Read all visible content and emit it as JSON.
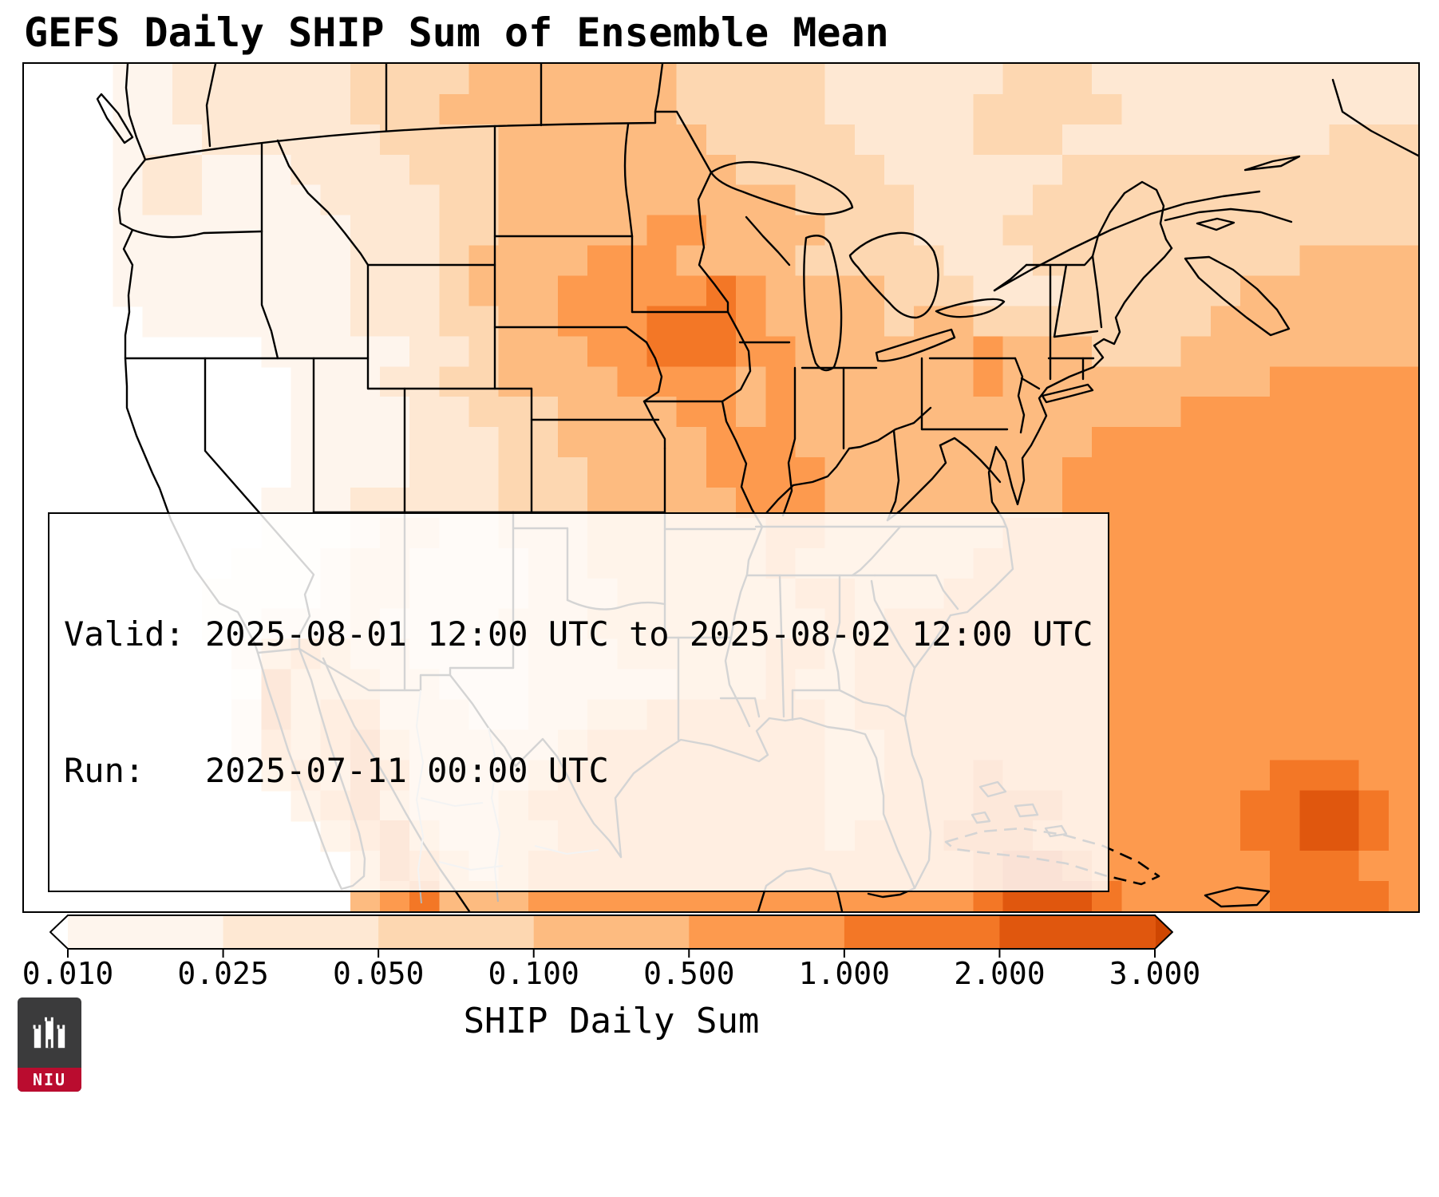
{
  "title": "GEFS Daily SHIP Sum of Ensemble Mean",
  "info_box": {
    "valid_line": "Valid: 2025-08-01 12:00 UTC to 2025-08-02 12:00 UTC",
    "run_line": "Run:   2025-07-11 00:00 UTC"
  },
  "colorbar": {
    "label": "SHIP Daily Sum",
    "ticks": [
      "0.010",
      "0.025",
      "0.050",
      "0.100",
      "0.500",
      "1.000",
      "2.000",
      "3.000"
    ],
    "under_color": "#ffffff",
    "segment_colors": [
      "#fef5ed",
      "#fee8d3",
      "#fdd7b1",
      "#fdbb80",
      "#fd9a4e",
      "#f37726",
      "#e0570e"
    ],
    "over_color": "#ce4602"
  },
  "logo": {
    "text": "NIU",
    "bg": "#3b3b3c",
    "accent": "#ba0c2f"
  },
  "chart_data": {
    "type": "heatmap",
    "title": "GEFS Daily SHIP Sum of Ensemble Mean",
    "colorbar_label": "SHIP Daily Sum",
    "colorbar_ticks": [
      0.01,
      0.025,
      0.05,
      0.1,
      0.5,
      1.0,
      2.0,
      3.0
    ],
    "valid": "2025-08-01 12:00 UTC to 2025-08-02 12:00 UTC",
    "run": "2025-07-11 00:00 UTC",
    "region": "CONUS, southern Canada, northern Mexico, Gulf of Mexico and western Atlantic (approx lon -130 to -53, lat 24 to 52)",
    "legend_position": "bottom",
    "grid": "off",
    "palette": {
      "0": "#ffffff",
      "1": "#fef5ed",
      "2": "#fee8d3",
      "3": "#fdd7b1",
      "4": "#fdbb80",
      "5": "#fd9a4e",
      "6": "#f37726",
      "7": "#e0570e",
      "8": "#ce4602"
    },
    "level_bins": {
      "0": "< 0.010",
      "1": "0.010-0.025",
      "2": "0.025-0.050",
      "3": "0.050-0.100",
      "4": "0.100-0.500",
      "5": "0.500-1.000",
      "6": "1.000-2.000",
      "7": "2.000-3.000",
      "8": "> 3.000"
    },
    "grid_cols": 47,
    "grid_rows_count": 28,
    "grid_rows": [
      "00011222222333344444443333322222233322222222222",
      "00011222222333444444443333322222333332222222222",
      "00011122222233334444444333332222333222222222333",
      "00012211122223334444444433333222222333333333333",
      "00012211112222334444444444333322223333333333333",
      "00011111111222334444455444433322233333333333333",
      "00011111111222344445554444333332223333333334444",
      "00011111111222344455555654444333222333333444444",
      "00001111111222334455566654444344333333334444444",
      "00000000111112234445566655444444544433344444444",
      "00000000011122334444555545444444544444444455555",
      "00000000011112233344445545444444444444455555555",
      "00000000011112223344444555444444444455555555555",
      "00000000011112223334444555544444444555555555555",
      "00000000111222223334444455544444444555555555555",
      "00000000111233223334444445544444455555555555555",
      "00000001112332222334444445444444555555555555555",
      "00000011112332222333444444554445555555555555555",
      "00000011222322223334444444454555555555555555555",
      "00000002454332222333444445545555555555555555555",
      "00000001644433222333334445445555555555555555555",
      "00000002645533322334455555545555555555555555555",
      "00000002545643333345555555544555555555555555555",
      "00000000454653333455555555544555655555555566655",
      "00000000045643334555555555544555666555555667765",
      "00000000004564334455555555545556665555555667765",
      "00000000000465434555555555555555677655555566655",
      "00000000000456444555555555555555677765555566665"
    ],
    "notable_maxima": [
      "Iowa / southern Minnesota / eastern Nebraska core in 1.000-2.000 bin",
      "Baja California and Sierra Madre Occidental strip in 1.000-2.000 bin",
      "Cuba / Bahamas area patches in 2.000-3.000 bin",
      "Interior western US (NV/UT/CA) below 0.010 (white)"
    ]
  }
}
